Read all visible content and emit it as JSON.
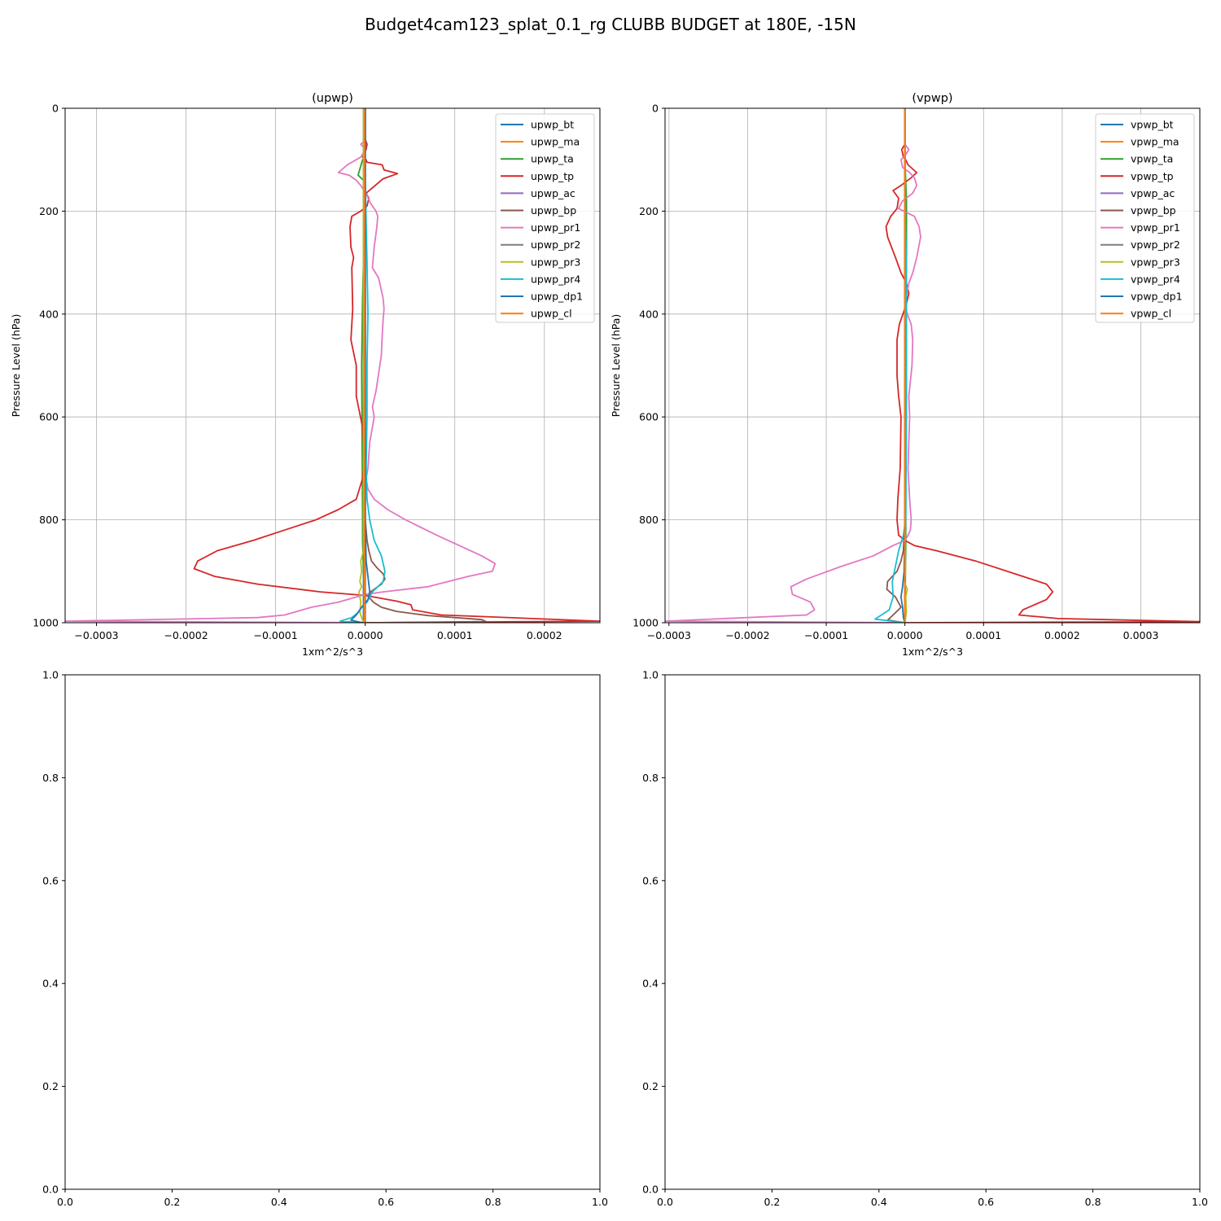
{
  "figure": {
    "title": "Budget4cam123_splat_0.1_rg CLUBB BUDGET at 180E, -15N"
  },
  "colors": {
    "bt": "#1f77b4",
    "ma": "#ff7f0e",
    "ta": "#2ca02c",
    "tp": "#d62728",
    "ac": "#9467bd",
    "bp": "#8c564b",
    "pr1": "#e377c2",
    "pr2": "#7f7f7f",
    "pr3": "#bcbd22",
    "pr4": "#17becf",
    "dp1": "#1f77b4",
    "cl": "#ff7f0e",
    "grid": "#b0b0b0"
  },
  "chart_data": [
    {
      "type": "line",
      "title": "(upwp)",
      "xlabel": "1xm^2/s^3",
      "ylabel": "Pressure Level (hPa)",
      "xlim": [
        -0.000335,
        0.000262
      ],
      "ylim": [
        1000,
        0
      ],
      "xticks": [
        -0.0003,
        -0.0002,
        -0.0001,
        0.0,
        0.0001,
        0.0002
      ],
      "xtick_labels": [
        "−0.0003",
        "−0.0002",
        "−0.0001",
        "0.0000",
        "0.0001",
        "0.0002"
      ],
      "yticks": [
        0,
        200,
        400,
        600,
        800,
        1000
      ],
      "ytick_labels": [
        "0",
        "200",
        "400",
        "600",
        "800",
        "1000"
      ],
      "grid": true,
      "legend_position": "top-right",
      "series": [
        {
          "name": "upwp_bt",
          "key": "bt",
          "x": [
            -2e-06,
            -2e-06,
            -2e-06,
            -2e-06,
            -2e-06
          ],
          "y": [
            0,
            200,
            600,
            900,
            1000
          ]
        },
        {
          "name": "upwp_ma",
          "key": "ma",
          "x": [
            -1e-06,
            -1e-06,
            -1e-06,
            -1e-06
          ],
          "y": [
            0,
            400,
            800,
            1000
          ]
        },
        {
          "name": "upwp_ta",
          "key": "ta",
          "x": [
            0,
            0,
            -3e-06,
            -8e-06,
            -2e-06,
            -2e-06,
            -3e-06,
            -4e-06,
            -3e-06,
            -3e-06,
            -2e-06,
            0
          ],
          "y": [
            0,
            90,
            100,
            130,
            140,
            300,
            370,
            500,
            800,
            840,
            900,
            1000
          ]
        },
        {
          "name": "upwp_tp",
          "key": "tp",
          "x": [
            0,
            0,
            2e-06,
            1e-06,
            -2e-06,
            -3e-06,
            1e-06,
            2e-06,
            1.9e-05,
            2.1e-05,
            3.6e-05,
            2e-05,
            1e-06,
            4e-06,
            2e-06,
            -5e-06,
            -1.5e-05,
            -1.7e-05,
            -1.6e-05,
            -1.3e-05,
            -1.5e-05,
            -1.4e-05,
            -1.6e-05,
            -1e-05,
            -1e-05,
            -3e-06,
            -1e-06,
            -3e-06,
            -1e-05,
            -3e-05,
            -5.5e-05,
            -9e-05,
            -0.000125,
            -0.000165,
            -0.000187,
            -0.000191,
            -0.000168,
            -0.00012,
            -5e-05,
            0.0,
            3.5e-05,
            5.1e-05,
            5.3e-05,
            8.5e-05,
            0.000262,
            0.0
          ],
          "y": [
            0,
            60,
            70,
            80,
            90,
            95,
            100,
            105,
            110,
            120,
            127,
            137,
            165,
            175,
            190,
            200,
            210,
            230,
            270,
            290,
            310,
            390,
            450,
            500,
            560,
            620,
            680,
            720,
            760,
            780,
            800,
            820,
            840,
            860,
            880,
            895,
            910,
            925,
            940,
            947,
            958,
            965,
            975,
            985,
            997,
            1000
          ]
        },
        {
          "name": "upwp_ac",
          "key": "ac",
          "x": [
            0,
            0,
            0,
            0
          ],
          "y": [
            0,
            400,
            800,
            1000
          ]
        },
        {
          "name": "upwp_bp",
          "key": "bp",
          "x": [
            0,
            0,
            2e-06,
            4e-06,
            7e-06,
            1.3e-05,
            2e-05,
            2.2e-05,
            1.8e-05,
            6e-06,
            4e-06,
            9e-06,
            1.8e-05,
            3.5e-05,
            7e-05,
            0.0001,
            0.00013,
            0.000135,
            0.0
          ],
          "y": [
            0,
            800,
            840,
            860,
            880,
            893,
            905,
            915,
            925,
            940,
            950,
            960,
            970,
            978,
            986,
            990,
            994,
            998,
            1000
          ]
        },
        {
          "name": "upwp_pr1",
          "key": "pr1",
          "x": [
            0,
            0,
            -2e-06,
            -5e-06,
            0.0,
            -5e-06,
            -1e-05,
            -2e-05,
            -3e-05,
            -1.8e-05,
            -1e-05,
            -5e-06,
            2e-06,
            6e-06,
            1.2e-05,
            1.4e-05,
            1.3e-05,
            1e-05,
            8e-06,
            1.5e-05,
            2e-05,
            2.1e-05,
            2e-05,
            1.9e-05,
            1.8e-05,
            1.2e-05,
            8e-06,
            1e-05,
            5e-06,
            3e-06,
            1e-06,
            3e-06,
            1e-05,
            2.5e-05,
            4.5e-05,
            8e-05,
            0.00013,
            0.000145,
            0.000142,
            0.000115,
            7e-05,
            2e-05,
            0.0,
            -3e-05,
            -6e-05,
            -8e-05,
            -9e-05,
            -0.00012,
            -0.000335,
            0.0
          ],
          "y": [
            0,
            60,
            65,
            70,
            80,
            95,
            100,
            110,
            125,
            130,
            140,
            150,
            170,
            185,
            200,
            210,
            230,
            270,
            310,
            330,
            370,
            390,
            410,
            440,
            480,
            550,
            580,
            600,
            650,
            700,
            720,
            740,
            760,
            780,
            800,
            830,
            870,
            885,
            900,
            910,
            930,
            940,
            945,
            960,
            970,
            980,
            985,
            990,
            997,
            1000
          ]
        },
        {
          "name": "upwp_pr2",
          "key": "pr2",
          "x": [
            0,
            0,
            0,
            0
          ],
          "y": [
            0,
            400,
            800,
            1000
          ]
        },
        {
          "name": "upwp_pr3",
          "key": "pr3",
          "x": [
            -2e-06,
            -2e-06,
            -5e-06,
            -4e-06,
            -6e-06,
            -4e-06,
            -7e-06,
            -5e-06,
            -6e-06,
            -3e-06,
            0
          ],
          "y": [
            0,
            860,
            880,
            900,
            920,
            930,
            940,
            960,
            980,
            995,
            1000
          ]
        },
        {
          "name": "upwp_pr4",
          "key": "pr4",
          "x": [
            0,
            0,
            2e-06,
            3e-06,
            2e-06,
            2e-06,
            1e-06,
            2e-06,
            5e-06,
            1e-05,
            1.8e-05,
            2.2e-05,
            2e-05,
            8e-06,
            2e-06,
            -4e-06,
            -8e-06,
            -1.5e-05,
            -2.8e-05,
            0.0
          ],
          "y": [
            0,
            140,
            300,
            400,
            500,
            600,
            700,
            760,
            800,
            840,
            870,
            900,
            920,
            940,
            960,
            970,
            980,
            990,
            997,
            1000
          ]
        },
        {
          "name": "upwp_dp1",
          "key": "dp1",
          "x": [
            0,
            0,
            1e-06,
            3e-06,
            5e-06,
            3e-06,
            -4e-06,
            -1e-05,
            -1.6e-05,
            -6e-06,
            0
          ],
          "y": [
            0,
            800,
            880,
            910,
            940,
            955,
            970,
            985,
            995,
            999,
            1000
          ]
        },
        {
          "name": "upwp_cl",
          "key": "cl",
          "x": [
            -1e-06,
            -1e-06,
            -1e-06,
            -1e-06
          ],
          "y": [
            0,
            400,
            800,
            1000
          ]
        }
      ]
    },
    {
      "type": "line",
      "title": "(vpwp)",
      "xlabel": "1xm^2/s^3",
      "ylabel": "Pressure Level (hPa)",
      "xlim": [
        -0.000305,
        0.000375
      ],
      "ylim": [
        1000,
        0
      ],
      "xticks": [
        -0.0003,
        -0.0002,
        -0.0001,
        0.0,
        0.0001,
        0.0002,
        0.0003
      ],
      "xtick_labels": [
        "−0.0003",
        "−0.0002",
        "−0.0001",
        "0.0000",
        "0.0001",
        "0.0002",
        "0.0003"
      ],
      "yticks": [
        0,
        200,
        400,
        600,
        800,
        1000
      ],
      "ytick_labels": [
        "0",
        "200",
        "400",
        "600",
        "800",
        "1000"
      ],
      "grid": true,
      "legend_position": "top-right",
      "series": [
        {
          "name": "vpwp_bt",
          "key": "bt",
          "x": [
            0,
            0,
            0,
            0,
            0
          ],
          "y": [
            0,
            200,
            600,
            900,
            1000
          ]
        },
        {
          "name": "vpwp_ma",
          "key": "ma",
          "x": [
            0,
            0,
            0,
            0
          ],
          "y": [
            0,
            400,
            800,
            1000
          ]
        },
        {
          "name": "vpwp_ta",
          "key": "ta",
          "x": [
            0,
            0,
            2e-06,
            2e-06,
            2e-06,
            1e-06,
            1e-06,
            0
          ],
          "y": [
            0,
            100,
            180,
            300,
            400,
            600,
            850,
            1000
          ]
        },
        {
          "name": "vpwp_tp",
          "key": "tp",
          "x": [
            0,
            0,
            -4e-06,
            -2e-06,
            1e-06,
            4e-06,
            1.5e-05,
            8e-06,
            -5e-06,
            -1.5e-05,
            -8e-06,
            -1e-05,
            -1.8e-05,
            -2.4e-05,
            -2.2e-05,
            -1.2e-05,
            -5e-06,
            2e-06,
            5e-06,
            2e-06,
            -7e-06,
            -1e-05,
            -1e-05,
            -8e-06,
            -5e-06,
            -6e-06,
            -9e-06,
            -1e-05,
            -8e-06,
            0.0,
            1.2e-05,
            4e-05,
            9e-05,
            0.00015,
            0.00018,
            0.000188,
            0.00018,
            0.00015,
            0.000145,
            0.000195,
            0.000375,
            0.0
          ],
          "y": [
            0,
            70,
            80,
            95,
            100,
            110,
            125,
            135,
            150,
            160,
            175,
            195,
            210,
            230,
            250,
            290,
            320,
            340,
            360,
            380,
            420,
            450,
            520,
            560,
            600,
            700,
            760,
            800,
            830,
            840,
            850,
            860,
            880,
            910,
            925,
            940,
            955,
            975,
            985,
            992,
            998,
            1000
          ]
        },
        {
          "name": "vpwp_ac",
          "key": "ac",
          "x": [
            0,
            0,
            0,
            0
          ],
          "y": [
            0,
            400,
            800,
            1000
          ]
        },
        {
          "name": "vpwp_bp",
          "key": "bp",
          "x": [
            0,
            0,
            -2e-06,
            -5e-06,
            -1e-05,
            -2.2e-05,
            -2.3e-05,
            -1.2e-05,
            -5e-06,
            -1.5e-05,
            -2.2e-05,
            0.0
          ],
          "y": [
            0,
            800,
            860,
            880,
            900,
            920,
            935,
            950,
            970,
            985,
            995,
            1000
          ]
        },
        {
          "name": "vpwp_pr1",
          "key": "pr1",
          "x": [
            0,
            0,
            5e-06,
            1e-06,
            -5e-06,
            -3e-06,
            6e-06,
            1.2e-05,
            1.5e-05,
            1e-05,
            -3e-06,
            -8e-06,
            1.2e-05,
            1.8e-05,
            2e-05,
            1.5e-05,
            1e-05,
            5e-06,
            0.0,
            3e-06,
            8e-06,
            1e-05,
            9e-06,
            5e-06,
            6e-06,
            4e-06,
            6e-06,
            8e-06,
            7e-06,
            4e-06,
            0.0,
            -1.5e-05,
            -4e-05,
            -8e-05,
            -0.000125,
            -0.000145,
            -0.000143,
            -0.00012,
            -0.000115,
            -0.000125,
            -0.000305,
            0.0
          ],
          "y": [
            0,
            70,
            80,
            90,
            100,
            115,
            125,
            135,
            150,
            165,
            180,
            195,
            210,
            230,
            250,
            290,
            320,
            340,
            380,
            400,
            420,
            450,
            500,
            560,
            600,
            700,
            760,
            800,
            820,
            830,
            840,
            850,
            870,
            890,
            915,
            930,
            945,
            960,
            975,
            985,
            997,
            1000
          ]
        },
        {
          "name": "vpwp_pr2",
          "key": "pr2",
          "x": [
            0,
            0,
            0,
            0
          ],
          "y": [
            0,
            400,
            800,
            1000
          ]
        },
        {
          "name": "vpwp_pr3",
          "key": "pr3",
          "x": [
            0,
            0,
            1e-06,
            -1e-06,
            3e-06,
            1e-06,
            2e-06,
            0
          ],
          "y": [
            0,
            860,
            900,
            920,
            935,
            950,
            980,
            1000
          ]
        },
        {
          "name": "vpwp_pr4",
          "key": "pr4",
          "x": [
            0,
            0,
            2e-06,
            2e-06,
            1e-06,
            -2e-06,
            -8e-06,
            -1.2e-05,
            -1.6e-05,
            -1.5e-05,
            -2e-05,
            -3.8e-05,
            0.0
          ],
          "y": [
            0,
            200,
            300,
            600,
            800,
            830,
            860,
            890,
            920,
            950,
            975,
            993,
            1000
          ]
        },
        {
          "name": "vpwp_dp1",
          "key": "dp1",
          "x": [
            0,
            0,
            -1e-06,
            -3e-06,
            -5e-06,
            -3e-06,
            -2e-06,
            0
          ],
          "y": [
            0,
            800,
            900,
            930,
            950,
            970,
            990,
            1000
          ]
        },
        {
          "name": "vpwp_cl",
          "key": "cl",
          "x": [
            0,
            0,
            0,
            0
          ],
          "y": [
            0,
            400,
            800,
            1000
          ]
        }
      ]
    },
    {
      "type": "line",
      "title": "",
      "xlim": [
        0,
        1
      ],
      "ylim": [
        0,
        1
      ],
      "xticks": [
        0.0,
        0.2,
        0.4,
        0.6,
        0.8,
        1.0
      ],
      "xtick_labels": [
        "0.0",
        "0.2",
        "0.4",
        "0.6",
        "0.8",
        "1.0"
      ],
      "yticks": [
        0.0,
        0.2,
        0.4,
        0.6,
        0.8,
        1.0
      ],
      "ytick_labels": [
        "0.0",
        "0.2",
        "0.4",
        "0.6",
        "0.8",
        "1.0"
      ],
      "grid": false,
      "series": []
    },
    {
      "type": "line",
      "title": "",
      "xlim": [
        0,
        1
      ],
      "ylim": [
        0,
        1
      ],
      "xticks": [
        0.0,
        0.2,
        0.4,
        0.6,
        0.8,
        1.0
      ],
      "xtick_labels": [
        "0.0",
        "0.2",
        "0.4",
        "0.6",
        "0.8",
        "1.0"
      ],
      "yticks": [
        0.0,
        0.2,
        0.4,
        0.6,
        0.8,
        1.0
      ],
      "ytick_labels": [
        "0.0",
        "0.2",
        "0.4",
        "0.6",
        "0.8",
        "1.0"
      ],
      "grid": false,
      "series": []
    }
  ]
}
